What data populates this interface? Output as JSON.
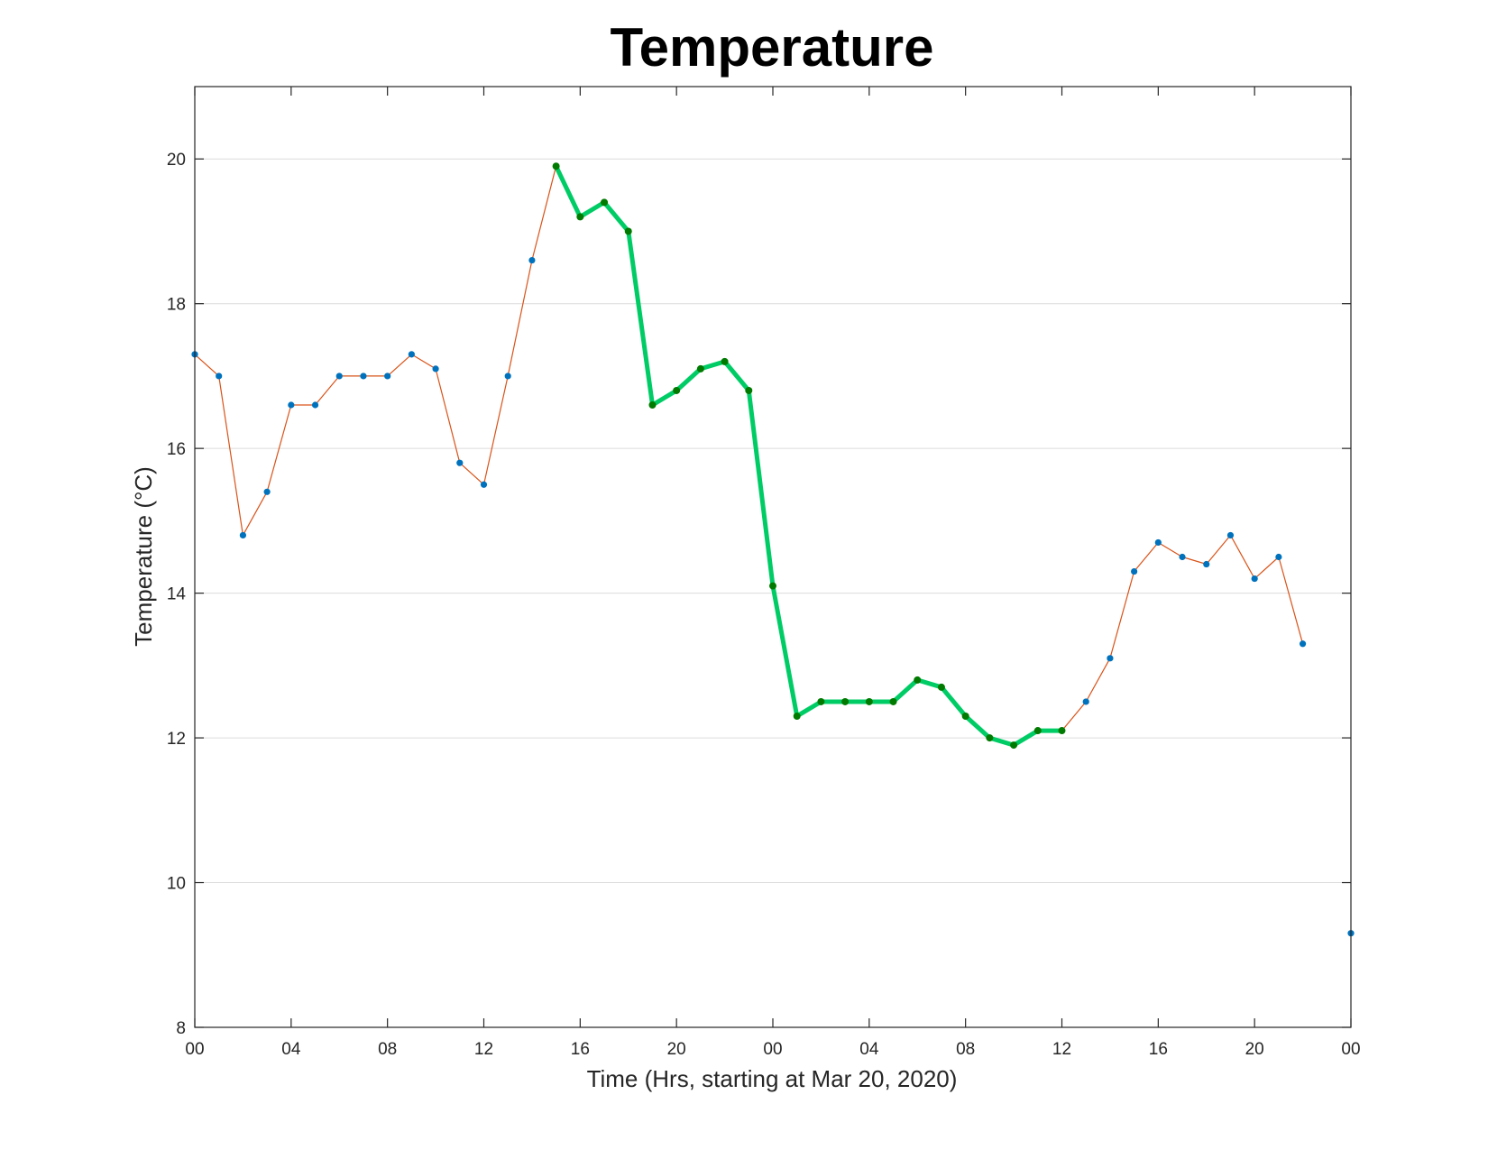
{
  "chart_data": {
    "type": "line",
    "title": "Temperature",
    "xlabel": "Time (Hrs, starting at Mar 20, 2020)",
    "ylabel": "Temperature (°C)",
    "xlim": [
      0,
      48
    ],
    "ylim": [
      8,
      21
    ],
    "x_tick_labels": [
      "00",
      "04",
      "08",
      "12",
      "16",
      "20",
      "00",
      "04",
      "08",
      "12",
      "16",
      "20",
      "00"
    ],
    "y_ticks": [
      8,
      10,
      12,
      14,
      16,
      18,
      20
    ],
    "grid": "horizontal",
    "series": [
      {
        "style": "thin line with markers",
        "line_color": "#d95319",
        "marker_color": "#0072bd",
        "x": [
          0,
          1,
          2,
          3,
          4,
          5,
          6,
          7,
          8,
          9,
          10,
          11,
          12,
          13,
          14,
          15,
          16,
          17,
          18,
          19,
          20,
          21,
          22,
          23,
          24,
          25,
          26,
          27,
          28,
          29,
          30,
          31,
          32,
          33,
          34,
          35,
          36,
          37,
          38,
          39,
          40,
          41,
          42,
          43,
          44,
          45,
          46
        ],
        "values": [
          17.3,
          17.0,
          14.8,
          15.4,
          16.6,
          16.6,
          17.0,
          17.0,
          17.0,
          17.3,
          17.1,
          15.8,
          15.5,
          17.0,
          18.6,
          19.9,
          19.2,
          19.4,
          19.0,
          16.6,
          16.8,
          17.1,
          17.2,
          16.8,
          14.1,
          12.3,
          12.5,
          12.5,
          12.5,
          12.5,
          12.8,
          12.7,
          12.3,
          12.0,
          11.9,
          12.1,
          12.1,
          12.5,
          13.1,
          14.3,
          14.7,
          14.5,
          14.4,
          14.8,
          14.2,
          14.5,
          13.3
        ]
      },
      {
        "style": "highlighted thick line",
        "line_color": "#00cc66",
        "marker_color": "#007a00",
        "x": [
          15,
          16,
          17,
          18,
          19,
          20,
          21,
          22,
          23,
          24,
          25,
          26,
          27,
          28,
          29,
          30,
          31,
          32,
          33,
          34,
          35,
          36
        ],
        "values": [
          19.9,
          19.2,
          19.4,
          19.0,
          16.6,
          16.8,
          17.1,
          17.2,
          16.8,
          14.1,
          12.3,
          12.5,
          12.5,
          12.5,
          12.5,
          12.8,
          12.7,
          12.3,
          12.0,
          11.9,
          12.1,
          12.1
        ]
      },
      {
        "style": "isolated marker",
        "marker_color": "#0072bd",
        "x": [
          48
        ],
        "values": [
          9.3
        ]
      }
    ]
  }
}
